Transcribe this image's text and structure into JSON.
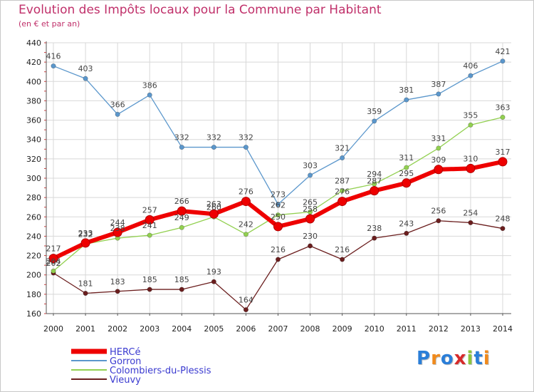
{
  "title": "Evolution des Impôts locaux pour la Commune par Habitant",
  "subtitle": "(en € et par an)",
  "logo": {
    "text": "Proxiti",
    "letters": [
      {
        "char": "P",
        "color": "#2a7ed8"
      },
      {
        "char": "r",
        "color": "#f08a1c"
      },
      {
        "char": "o",
        "color": "#2a7ed8"
      },
      {
        "char": "x",
        "color": "#d62a2a"
      },
      {
        "char": "i",
        "color": "#8cc63e"
      },
      {
        "char": "t",
        "color": "#2a7ed8"
      },
      {
        "char": "i",
        "color": "#f08a1c"
      }
    ]
  },
  "chart_data": {
    "type": "line",
    "x": [
      2000,
      2001,
      2002,
      2003,
      2004,
      2005,
      2006,
      2007,
      2008,
      2009,
      2010,
      2011,
      2012,
      2013,
      2014
    ],
    "ylim": [
      160,
      440
    ],
    "yticks": [
      160,
      180,
      200,
      220,
      240,
      260,
      280,
      300,
      320,
      340,
      360,
      380,
      400,
      420,
      440
    ],
    "grid": true,
    "legend_position": "bottom-left",
    "series": [
      {
        "name": "HERCé",
        "color": "#ee0000",
        "values": [
          217,
          233,
          244,
          257,
          266,
          263,
          276,
          250,
          258,
          276,
          287,
          295,
          309,
          310,
          317
        ],
        "labels": [
          "217",
          "233",
          "244",
          "257",
          "266",
          "263",
          "276",
          "250",
          "258",
          "276",
          "287",
          "295",
          "309",
          "310",
          "317"
        ]
      },
      {
        "name": "Gorron",
        "color": "#5b97cc",
        "values": [
          416,
          403,
          366,
          386,
          332,
          332,
          332,
          273,
          303,
          321,
          359,
          381,
          387,
          406,
          421
        ],
        "labels": [
          "416",
          "403",
          "366",
          "386",
          "332",
          "332",
          "332",
          "273",
          "303",
          "321",
          "359",
          "381",
          "387",
          "406",
          "421"
        ]
      },
      {
        "name": "Colombiers-du-Plessis",
        "color": "#92d050",
        "values": [
          204,
          232,
          238,
          241,
          249,
          260,
          242,
          262,
          265,
          287,
          294,
          311,
          331,
          355,
          363
        ],
        "labels": [
          "204",
          "232",
          "238",
          "241",
          "249",
          "260",
          "242",
          "262",
          "265",
          "287",
          "294",
          "311",
          "331",
          "355",
          "363"
        ]
      },
      {
        "name": "Vieuvy",
        "color": "#6b1e1e",
        "values": [
          202,
          181,
          183,
          185,
          185,
          193,
          164,
          216,
          230,
          216,
          238,
          243,
          256,
          254,
          248
        ],
        "labels": [
          "202",
          "181",
          "183",
          "185",
          "185",
          "193",
          "164",
          "216",
          "230",
          "216",
          "238",
          "243",
          "256",
          "254",
          "248"
        ]
      }
    ]
  }
}
